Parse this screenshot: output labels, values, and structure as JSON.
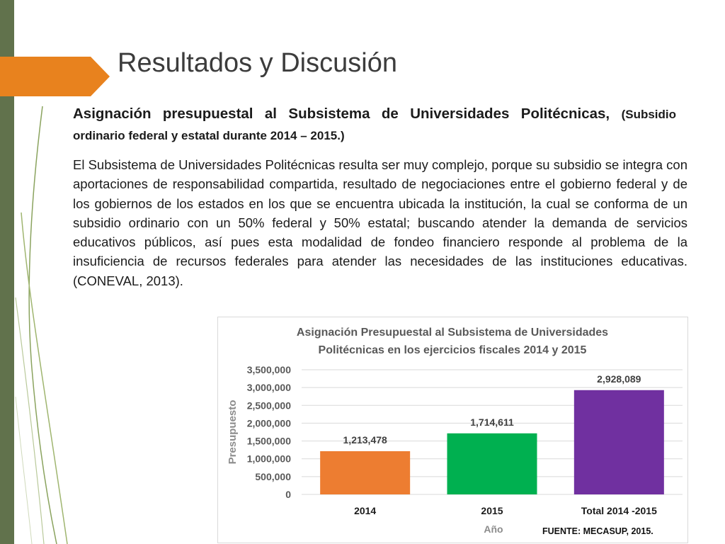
{
  "slide": {
    "title": "Resultados y Discusión",
    "subtitle_main": "Asignación presupuestal al Subsistema de Universidades Politécnicas,",
    "subtitle_paren": "(Subsidio ordinario federal y estatal durante 2014 – 2015.)",
    "body": "El Subsistema de Universidades Politécnicas resulta ser muy complejo, porque su subsidio se integra con aportaciones de responsabilidad compartida, resultado de negociaciones entre el gobierno federal y de los gobiernos de los estados en los que se encuentra ubicada la institución, la cual se conforma de un subsidio ordinario con un 50% federal y 50% estatal; buscando atender la demanda de servicios educativos públicos, así pues esta modalidad de fondeo financiero responde al problema de la insuficiencia de recursos federales para atender las necesidades de las instituciones educativas. (CONEVAL, 2013).",
    "source": "FUENTE: MECASUP, 2015."
  },
  "colors": {
    "left_bar": "#61724c",
    "accent": "#e8821e"
  },
  "chart_data": {
    "type": "bar",
    "title_lines": [
      "Asignación Presupuestal al Subsistema de Universidades",
      "Politécnicas en los ejercicios fiscales 2014 y 2015"
    ],
    "categories": [
      "2014",
      "2015",
      "Total 2014 -2015"
    ],
    "values": [
      1213478,
      1714611,
      2928089
    ],
    "value_labels": [
      "1,213,478",
      "1,714,611",
      "2,928,089"
    ],
    "colors": [
      "#ed7d31",
      "#00b050",
      "#7030a0"
    ],
    "ylabel": "Presupuesto",
    "xlabel": "Año",
    "ylim": [
      0,
      3500000
    ],
    "yticks": [
      0,
      500000,
      1000000,
      1500000,
      2000000,
      2500000,
      3000000,
      3500000
    ],
    "ytick_labels": [
      "0",
      "500,000",
      "1,000,000",
      "1,500,000",
      "2,000,000",
      "2,500,000",
      "3,000,000",
      "3,500,000"
    ],
    "grid": true,
    "legend": "none"
  }
}
